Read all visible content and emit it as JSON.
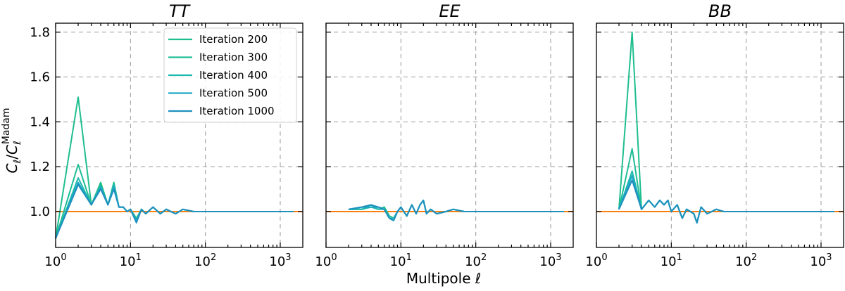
{
  "chart_data": {
    "type": "line",
    "xscale": "log",
    "xlim": [
      1,
      2000
    ],
    "ylim": [
      0.84,
      1.84
    ],
    "xticks": [
      {
        "value": 1,
        "label": "10",
        "exp": "0"
      },
      {
        "value": 10,
        "label": "10",
        "exp": "1"
      },
      {
        "value": 100,
        "label": "10",
        "exp": "2"
      },
      {
        "value": 1000,
        "label": "10",
        "exp": "3"
      }
    ],
    "yticks": [
      {
        "value": 1.0,
        "label": "1.0"
      },
      {
        "value": 1.2,
        "label": "1.2"
      },
      {
        "value": 1.4,
        "label": "1.4"
      },
      {
        "value": 1.6,
        "label": "1.6"
      },
      {
        "value": 1.8,
        "label": "1.8"
      }
    ],
    "xlabel": "Multipole ℓ",
    "ylabel": {
      "main": "C",
      "sub_l": "ℓ",
      "slash": "/",
      "sup": "Madam"
    },
    "reference": {
      "value": 1.0,
      "color": "#ff7f0e"
    },
    "legend": {
      "location": "upper-right of first panel"
    },
    "series_styles": [
      {
        "name": "Iteration 200",
        "color": "#1fbe8e"
      },
      {
        "name": "Iteration 300",
        "color": "#1ebd96"
      },
      {
        "name": "Iteration 400",
        "color": "#1cb9ad"
      },
      {
        "name": "Iteration 500",
        "color": "#1da8c4"
      },
      {
        "name": "Iteration 1000",
        "color": "#1f8fbf"
      }
    ],
    "panels": [
      {
        "title": "TT",
        "show_ylabels": true,
        "show_legend": true,
        "x": [
          1,
          2,
          3,
          4,
          5,
          6,
          7,
          8,
          9,
          10,
          12,
          14,
          16,
          20,
          25,
          30,
          40,
          50,
          70,
          100,
          150,
          200,
          300,
          500,
          700,
          1000,
          1500
        ],
        "series": [
          {
            "name": "Iteration 200",
            "values": [
              0.88,
              1.51,
              1.03,
              1.13,
              1.03,
              1.13,
              1.02,
              1.02,
              1.0,
              1.01,
              0.97,
              1.01,
              0.99,
              1.02,
              0.99,
              1.01,
              0.99,
              1.01,
              1.0,
              1.0,
              1.0,
              1.0,
              1.0,
              1.0,
              1.0,
              1.0,
              1.0
            ]
          },
          {
            "name": "Iteration 300",
            "values": [
              0.88,
              1.21,
              1.03,
              1.12,
              1.03,
              1.12,
              1.02,
              1.02,
              1.0,
              1.01,
              0.96,
              1.01,
              0.99,
              1.02,
              0.99,
              1.01,
              0.99,
              1.01,
              1.0,
              1.0,
              1.0,
              1.0,
              1.0,
              1.0,
              1.0,
              1.0,
              1.0
            ]
          },
          {
            "name": "Iteration 400",
            "values": [
              0.88,
              1.15,
              1.03,
              1.11,
              1.03,
              1.12,
              1.02,
              1.02,
              1.0,
              1.01,
              0.96,
              1.01,
              0.99,
              1.02,
              0.99,
              1.01,
              0.99,
              1.01,
              1.0,
              1.0,
              1.0,
              1.0,
              1.0,
              1.0,
              1.0,
              1.0,
              1.0
            ]
          },
          {
            "name": "Iteration 500",
            "values": [
              0.88,
              1.13,
              1.03,
              1.11,
              1.03,
              1.11,
              1.02,
              1.02,
              1.0,
              1.01,
              0.96,
              1.01,
              0.99,
              1.02,
              0.99,
              1.01,
              0.99,
              1.01,
              1.0,
              1.0,
              1.0,
              1.0,
              1.0,
              1.0,
              1.0,
              1.0,
              1.0
            ]
          },
          {
            "name": "Iteration 1000",
            "values": [
              0.88,
              1.12,
              1.03,
              1.1,
              1.03,
              1.1,
              1.02,
              1.02,
              1.0,
              1.01,
              0.95,
              1.01,
              0.99,
              1.02,
              0.99,
              1.01,
              0.99,
              1.01,
              1.0,
              1.0,
              1.0,
              1.0,
              1.0,
              1.0,
              1.0,
              1.0,
              1.0
            ]
          }
        ]
      },
      {
        "title": "EE",
        "show_ylabels": false,
        "show_legend": false,
        "x": [
          2,
          3,
          4,
          5,
          6,
          7,
          8,
          9,
          10,
          12,
          14,
          16,
          18,
          20,
          22,
          25,
          30,
          40,
          50,
          70,
          100,
          150,
          200,
          300,
          500,
          700,
          1000,
          1500
        ],
        "series": [
          {
            "name": "Iteration 200",
            "values": [
              1.01,
              1.01,
              1.03,
              1.01,
              1.02,
              0.98,
              0.97,
              1.0,
              1.02,
              0.98,
              1.03,
              0.99,
              1.03,
              1.05,
              0.99,
              1.01,
              0.99,
              1.0,
              1.01,
              1.0,
              1.0,
              1.0,
              1.0,
              1.0,
              1.0,
              1.0,
              1.0,
              1.0
            ]
          },
          {
            "name": "Iteration 300",
            "values": [
              1.01,
              1.01,
              1.03,
              1.01,
              1.02,
              0.98,
              0.97,
              1.0,
              1.02,
              0.98,
              1.03,
              0.99,
              1.03,
              1.05,
              0.99,
              1.01,
              0.99,
              1.0,
              1.01,
              1.0,
              1.0,
              1.0,
              1.0,
              1.0,
              1.0,
              1.0,
              1.0,
              1.0
            ]
          },
          {
            "name": "Iteration 400",
            "values": [
              1.01,
              1.01,
              1.02,
              1.01,
              1.01,
              0.97,
              0.97,
              1.0,
              1.02,
              0.98,
              1.03,
              0.99,
              1.03,
              1.05,
              0.99,
              1.01,
              0.99,
              1.0,
              1.01,
              1.0,
              1.0,
              1.0,
              1.0,
              1.0,
              1.0,
              1.0,
              1.0,
              1.0
            ]
          },
          {
            "name": "Iteration 500",
            "values": [
              1.01,
              1.02,
              1.02,
              1.02,
              1.01,
              0.97,
              0.96,
              1.0,
              1.02,
              0.98,
              1.03,
              0.99,
              1.03,
              1.05,
              0.99,
              1.01,
              0.99,
              1.0,
              1.01,
              1.0,
              1.0,
              1.0,
              1.0,
              1.0,
              1.0,
              1.0,
              1.0,
              1.0
            ]
          },
          {
            "name": "Iteration 1000",
            "values": [
              1.01,
              1.02,
              1.03,
              1.02,
              1.01,
              0.97,
              0.96,
              1.0,
              1.02,
              0.98,
              1.03,
              0.99,
              1.03,
              1.05,
              0.99,
              1.01,
              0.99,
              1.0,
              1.01,
              1.0,
              1.0,
              1.0,
              1.0,
              1.0,
              1.0,
              1.0,
              1.0,
              1.0
            ]
          }
        ]
      },
      {
        "title": "BB",
        "show_ylabels": false,
        "show_legend": false,
        "x": [
          2,
          3,
          4,
          5,
          6,
          7,
          8,
          9,
          10,
          12,
          14,
          16,
          18,
          20,
          22,
          25,
          30,
          40,
          50,
          70,
          100,
          150,
          200,
          300,
          500,
          700,
          1000,
          1500
        ],
        "series": [
          {
            "name": "Iteration 200",
            "values": [
              1.01,
              1.8,
              1.01,
              1.05,
              1.02,
              1.05,
              1.03,
              1.05,
              1.0,
              1.03,
              0.97,
              1.01,
              1.0,
              0.99,
              0.95,
              1.02,
              0.99,
              1.01,
              1.0,
              1.0,
              1.0,
              1.0,
              1.0,
              1.0,
              1.0,
              1.0,
              1.0,
              1.0
            ]
          },
          {
            "name": "Iteration 300",
            "values": [
              1.01,
              1.28,
              1.01,
              1.05,
              1.02,
              1.05,
              1.03,
              1.05,
              1.0,
              1.03,
              0.97,
              1.01,
              1.0,
              0.99,
              0.95,
              1.02,
              0.99,
              1.01,
              1.0,
              1.0,
              1.0,
              1.0,
              1.0,
              1.0,
              1.0,
              1.0,
              1.0,
              1.0
            ]
          },
          {
            "name": "Iteration 400",
            "values": [
              1.01,
              1.18,
              1.01,
              1.05,
              1.02,
              1.05,
              1.03,
              1.05,
              1.0,
              1.03,
              0.97,
              1.01,
              1.0,
              0.99,
              0.95,
              1.02,
              0.99,
              1.01,
              1.0,
              1.0,
              1.0,
              1.0,
              1.0,
              1.0,
              1.0,
              1.0,
              1.0,
              1.0
            ]
          },
          {
            "name": "Iteration 500",
            "values": [
              1.01,
              1.16,
              1.01,
              1.05,
              1.02,
              1.05,
              1.03,
              1.05,
              1.0,
              1.03,
              0.97,
              1.01,
              1.0,
              0.99,
              0.95,
              1.02,
              0.99,
              1.01,
              1.0,
              1.0,
              1.0,
              1.0,
              1.0,
              1.0,
              1.0,
              1.0,
              1.0,
              1.0
            ]
          },
          {
            "name": "Iteration 1000",
            "values": [
              1.01,
              1.14,
              1.01,
              1.05,
              1.02,
              1.05,
              1.03,
              1.05,
              1.0,
              1.03,
              0.97,
              1.01,
              1.0,
              0.99,
              0.95,
              1.02,
              0.99,
              1.01,
              1.0,
              1.0,
              1.0,
              1.0,
              1.0,
              1.0,
              1.0,
              1.0,
              1.0,
              1.0
            ]
          }
        ]
      }
    ]
  }
}
